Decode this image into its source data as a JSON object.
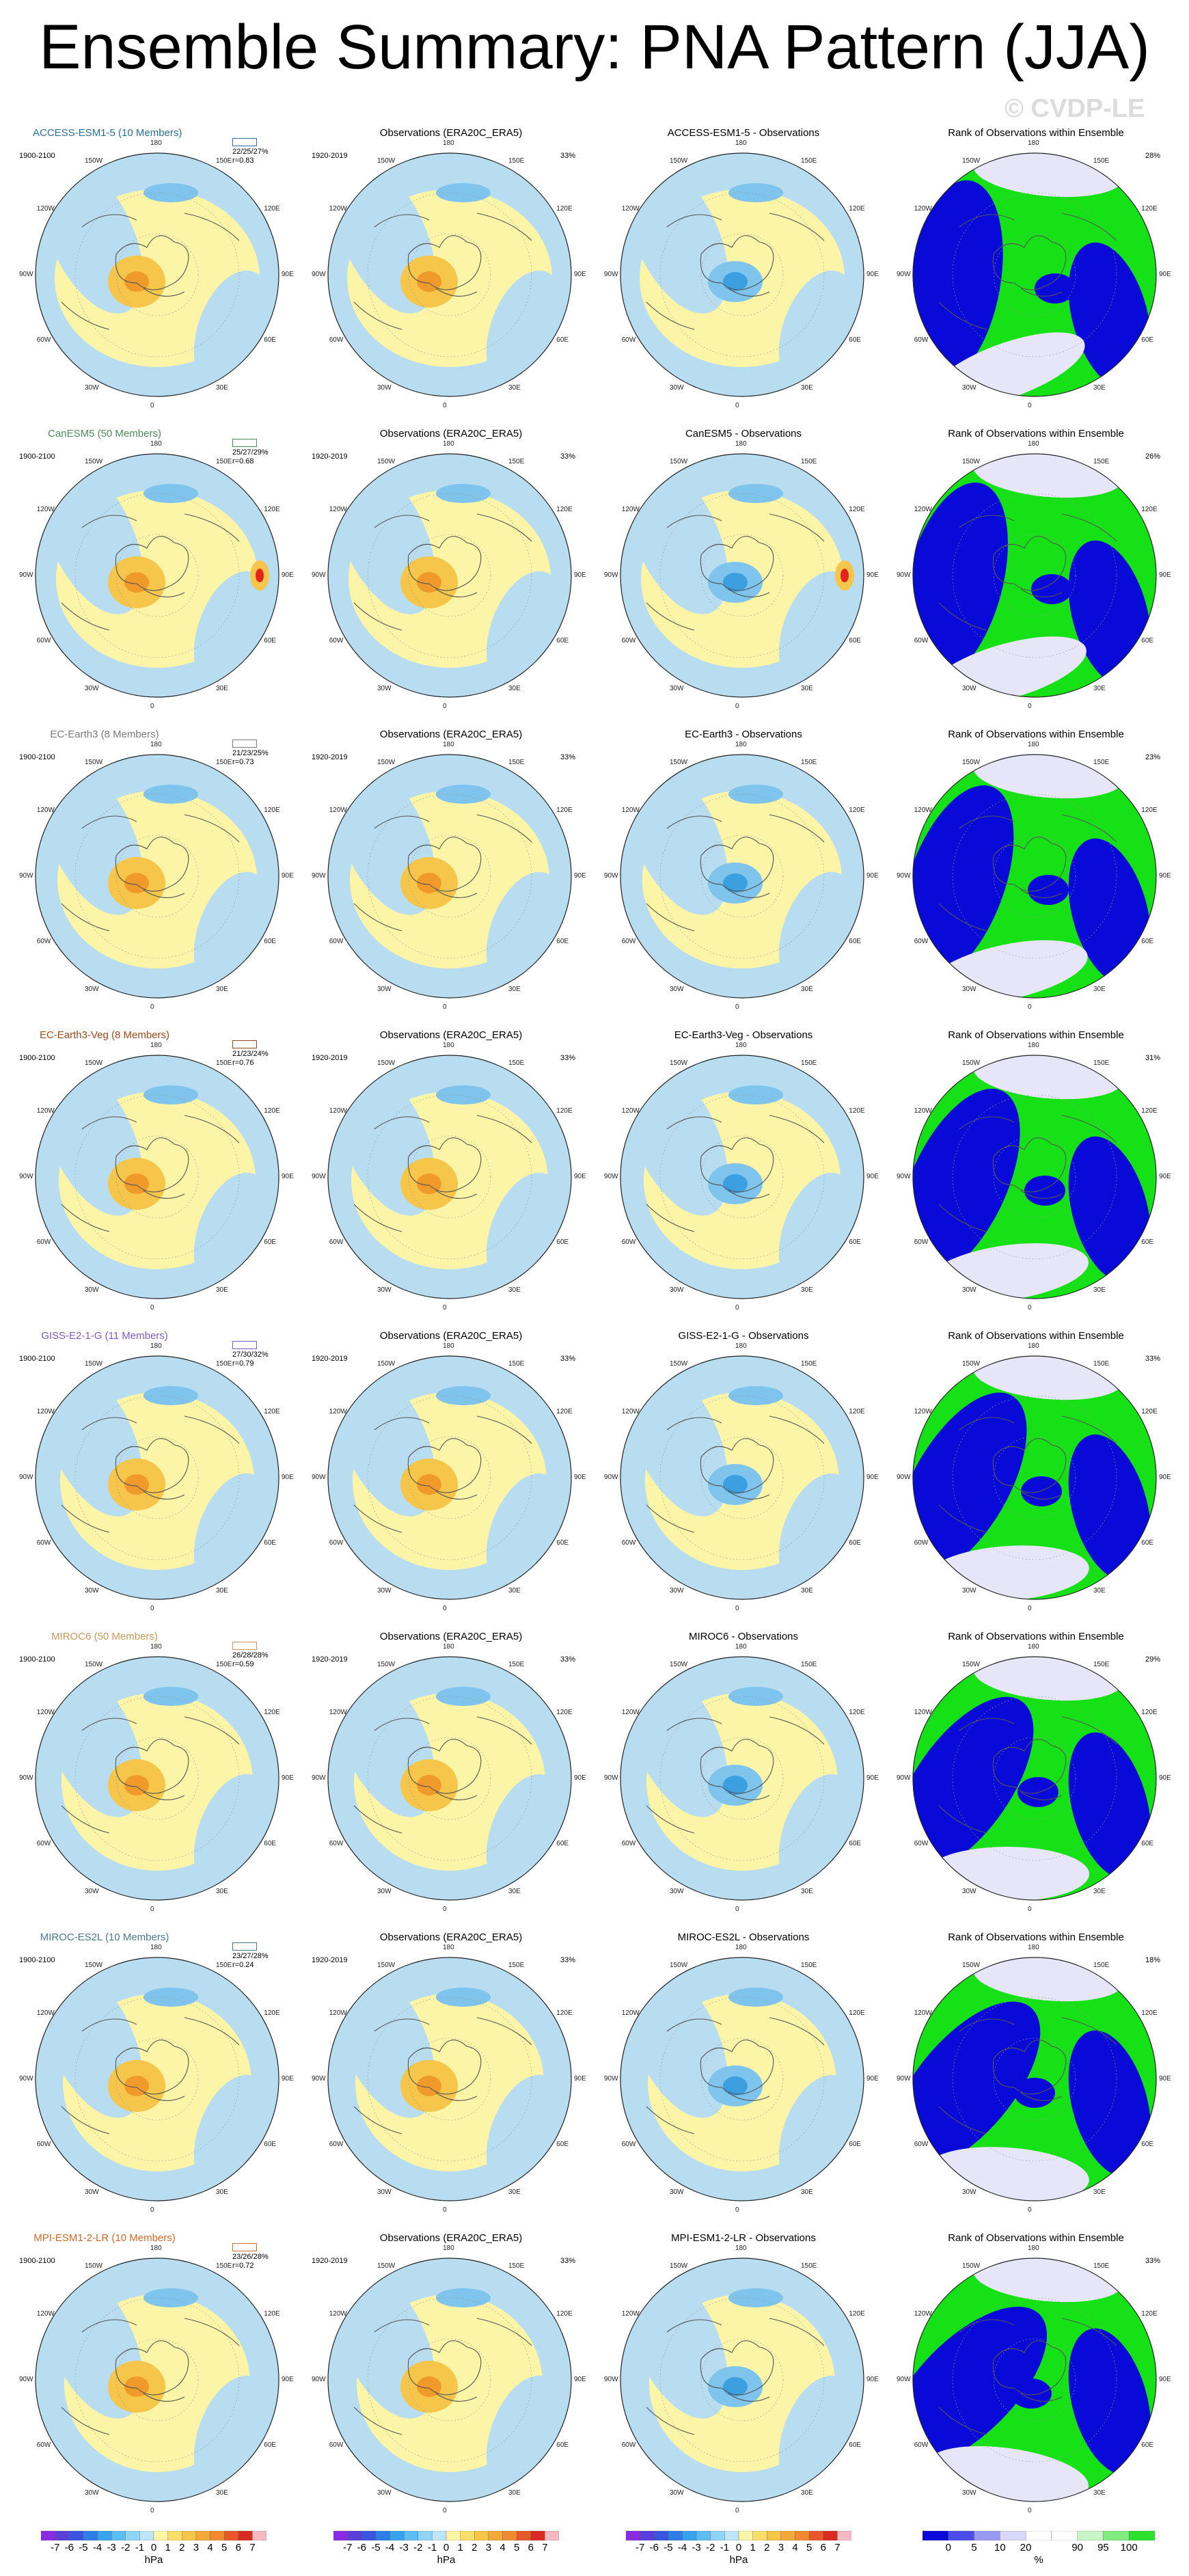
{
  "title": "Ensemble Summary: PNA Pattern (JJA)",
  "watermark": "© CVDP-LE",
  "obs_title": "Observations (ERA20C_ERA5)",
  "obs_period": "1920-2019",
  "obs_pct": "33%",
  "rank_title": "Rank of Observations within Ensemble",
  "model_period": "1900-2100",
  "lon_labels": [
    "180",
    "150E",
    "120E",
    "90E",
    "60E",
    "30E",
    "0",
    "30W",
    "60W",
    "90W",
    "120W",
    "150W"
  ],
  "models": [
    {
      "name": "ACCESS-ESM1-5 (10 Members)",
      "diff_title": "ACCESS-ESM1-5 - Observations",
      "stats": "22/25/27%",
      "r": "r=0.83",
      "rank_pct": "28%",
      "color": "#2a6f97"
    },
    {
      "name": "CanESM5 (50 Members)",
      "diff_title": "CanESM5 - Observations",
      "stats": "25/27/29%",
      "r": "r=0.68",
      "rank_pct": "26%",
      "color": "#4f8a5b"
    },
    {
      "name": "EC-Earth3 (8 Members)",
      "diff_title": "EC-Earth3 - Observations",
      "stats": "21/23/25%",
      "r": "r=0.73",
      "rank_pct": "23%",
      "color": "#7a7a7a"
    },
    {
      "name": "EC-Earth3-Veg (8 Members)",
      "diff_title": "EC-Earth3-Veg - Observations",
      "stats": "21/23/24%",
      "r": "r=0.76",
      "rank_pct": "31%",
      "color": "#9b4a1c"
    },
    {
      "name": "GISS-E2-1-G (11 Members)",
      "diff_title": "GISS-E2-1-G - Observations",
      "stats": "27/30/32%",
      "r": "r=0.79",
      "rank_pct": "33%",
      "color": "#7b5cc4"
    },
    {
      "name": "MIROC6 (50 Members)",
      "diff_title": "MIROC6 - Observations",
      "stats": "26/28/28%",
      "r": "r=0.59",
      "rank_pct": "29%",
      "color": "#c79a5a"
    },
    {
      "name": "MIROC-ES2L (10 Members)",
      "diff_title": "MIROC-ES2L - Observations",
      "stats": "23/27/28%",
      "r": "r=0.24",
      "rank_pct": "18%",
      "color": "#4a7a8c"
    },
    {
      "name": "MPI-ESM1-2-LR (10 Members)",
      "diff_title": "MPI-ESM1-2-LR - Observations",
      "stats": "23/26/28%",
      "r": "r=0.72",
      "rank_pct": "33%",
      "color": "#d2692a"
    }
  ],
  "colors": {
    "neg_light": "#b8dcf0",
    "neg_mid": "#7fc4ec",
    "neg_strong": "#3b9fe0",
    "pos_light": "#fcf5a8",
    "pos_mid": "#f6c64a",
    "pos_strong": "#ef9a2a",
    "pos_peak": "#e2241b",
    "rank_low": "#0a0ad8",
    "rank_mid": "#e6e6f8",
    "rank_high": "#16e016"
  },
  "colorbars": [
    {
      "ticks": [
        "-7",
        "-6",
        "-5",
        "-4",
        "-3",
        "-2",
        "-1",
        "0",
        "1",
        "2",
        "3",
        "4",
        "5",
        "6",
        "7"
      ],
      "unit": "hPa",
      "colors": [
        "#8a2be2",
        "#5a3fd8",
        "#3a55e0",
        "#2f7ee6",
        "#39a2ec",
        "#5cbdf0",
        "#8fd4f5",
        "#bfe6f8",
        "#fcf5a8",
        "#f9df6a",
        "#f6c64a",
        "#f3a93a",
        "#ef8a2e",
        "#e6572a",
        "#d92b22",
        "#f6b8c2"
      ]
    },
    {
      "ticks": [
        "-7",
        "-6",
        "-5",
        "-4",
        "-3",
        "-2",
        "-1",
        "0",
        "1",
        "2",
        "3",
        "4",
        "5",
        "6",
        "7"
      ],
      "unit": "hPa",
      "colors": [
        "#8a2be2",
        "#5a3fd8",
        "#3a55e0",
        "#2f7ee6",
        "#39a2ec",
        "#5cbdf0",
        "#8fd4f5",
        "#bfe6f8",
        "#fcf5a8",
        "#f9df6a",
        "#f6c64a",
        "#f3a93a",
        "#ef8a2e",
        "#e6572a",
        "#d92b22",
        "#f6b8c2"
      ]
    },
    {
      "ticks": [
        "-7",
        "-6",
        "-5",
        "-4",
        "-3",
        "-2",
        "-1",
        "0",
        "1",
        "2",
        "3",
        "4",
        "5",
        "6",
        "7"
      ],
      "unit": "hPa",
      "colors": [
        "#8a2be2",
        "#5a3fd8",
        "#3a55e0",
        "#2f7ee6",
        "#39a2ec",
        "#5cbdf0",
        "#8fd4f5",
        "#bfe6f8",
        "#fcf5a8",
        "#f9df6a",
        "#f6c64a",
        "#f3a93a",
        "#ef8a2e",
        "#e6572a",
        "#d92b22",
        "#f6b8c2"
      ]
    },
    {
      "ticks": [
        "0",
        "5",
        "10",
        "20",
        "90",
        "95",
        "100"
      ],
      "unit": "%",
      "colors": [
        "#0a0ad8",
        "#4c4ce6",
        "#9a9af0",
        "#d8d8f8",
        "#ffffff",
        "#ffffff",
        "#c8f4c8",
        "#80ec80",
        "#2ee02e"
      ]
    }
  ],
  "chart_data": {
    "type": "heatmap",
    "title": "Ensemble Summary: PNA Pattern (JJA)",
    "projection": "polar-stereographic",
    "units": "hPa",
    "rows": 8,
    "columns": [
      "model ensemble pattern",
      "observations",
      "model - observations",
      "rank of observations within ensemble"
    ],
    "regression_levels": [
      -7,
      -6,
      -5,
      -4,
      -3,
      -2,
      -1,
      0,
      1,
      2,
      3,
      4,
      5,
      6,
      7
    ],
    "rank_levels": [
      0,
      5,
      10,
      20,
      90,
      95,
      100
    ]
  }
}
